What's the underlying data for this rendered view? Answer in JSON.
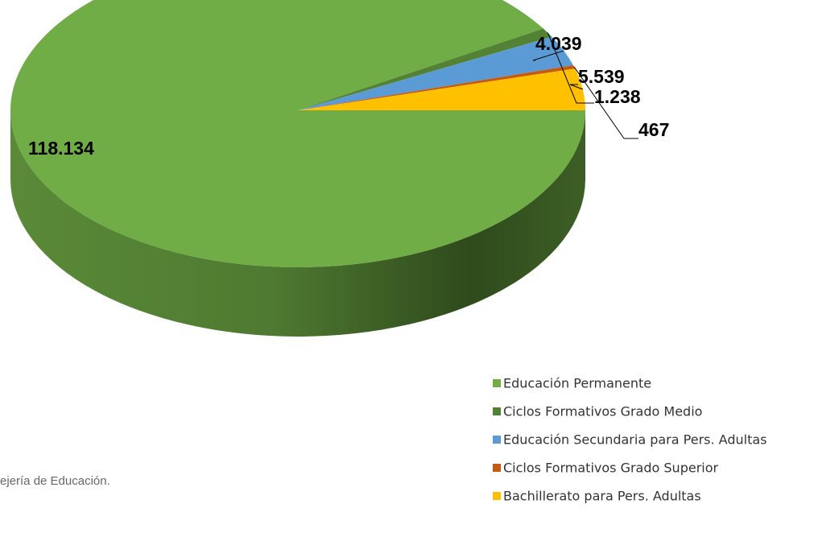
{
  "chart_data": {
    "type": "pie",
    "categories": [
      "Educación Permanente",
      "Ciclos Formativos Grado Medio",
      "Educación Secundaria para Pers. Adultas",
      "Ciclos Formativos Grado Superior",
      "Bachillerato para Pers. Adultas"
    ],
    "values": [
      118134,
      1238,
      4039,
      467,
      5539
    ],
    "value_labels": [
      "118.134",
      "1.238",
      "4.039",
      "467",
      "5.539"
    ],
    "colors": [
      "#70ad47",
      "#548235",
      "#5b9bd5",
      "#c55a11",
      "#ffc000"
    ],
    "legend": "bottom-right",
    "source": "ejería de Educación."
  }
}
